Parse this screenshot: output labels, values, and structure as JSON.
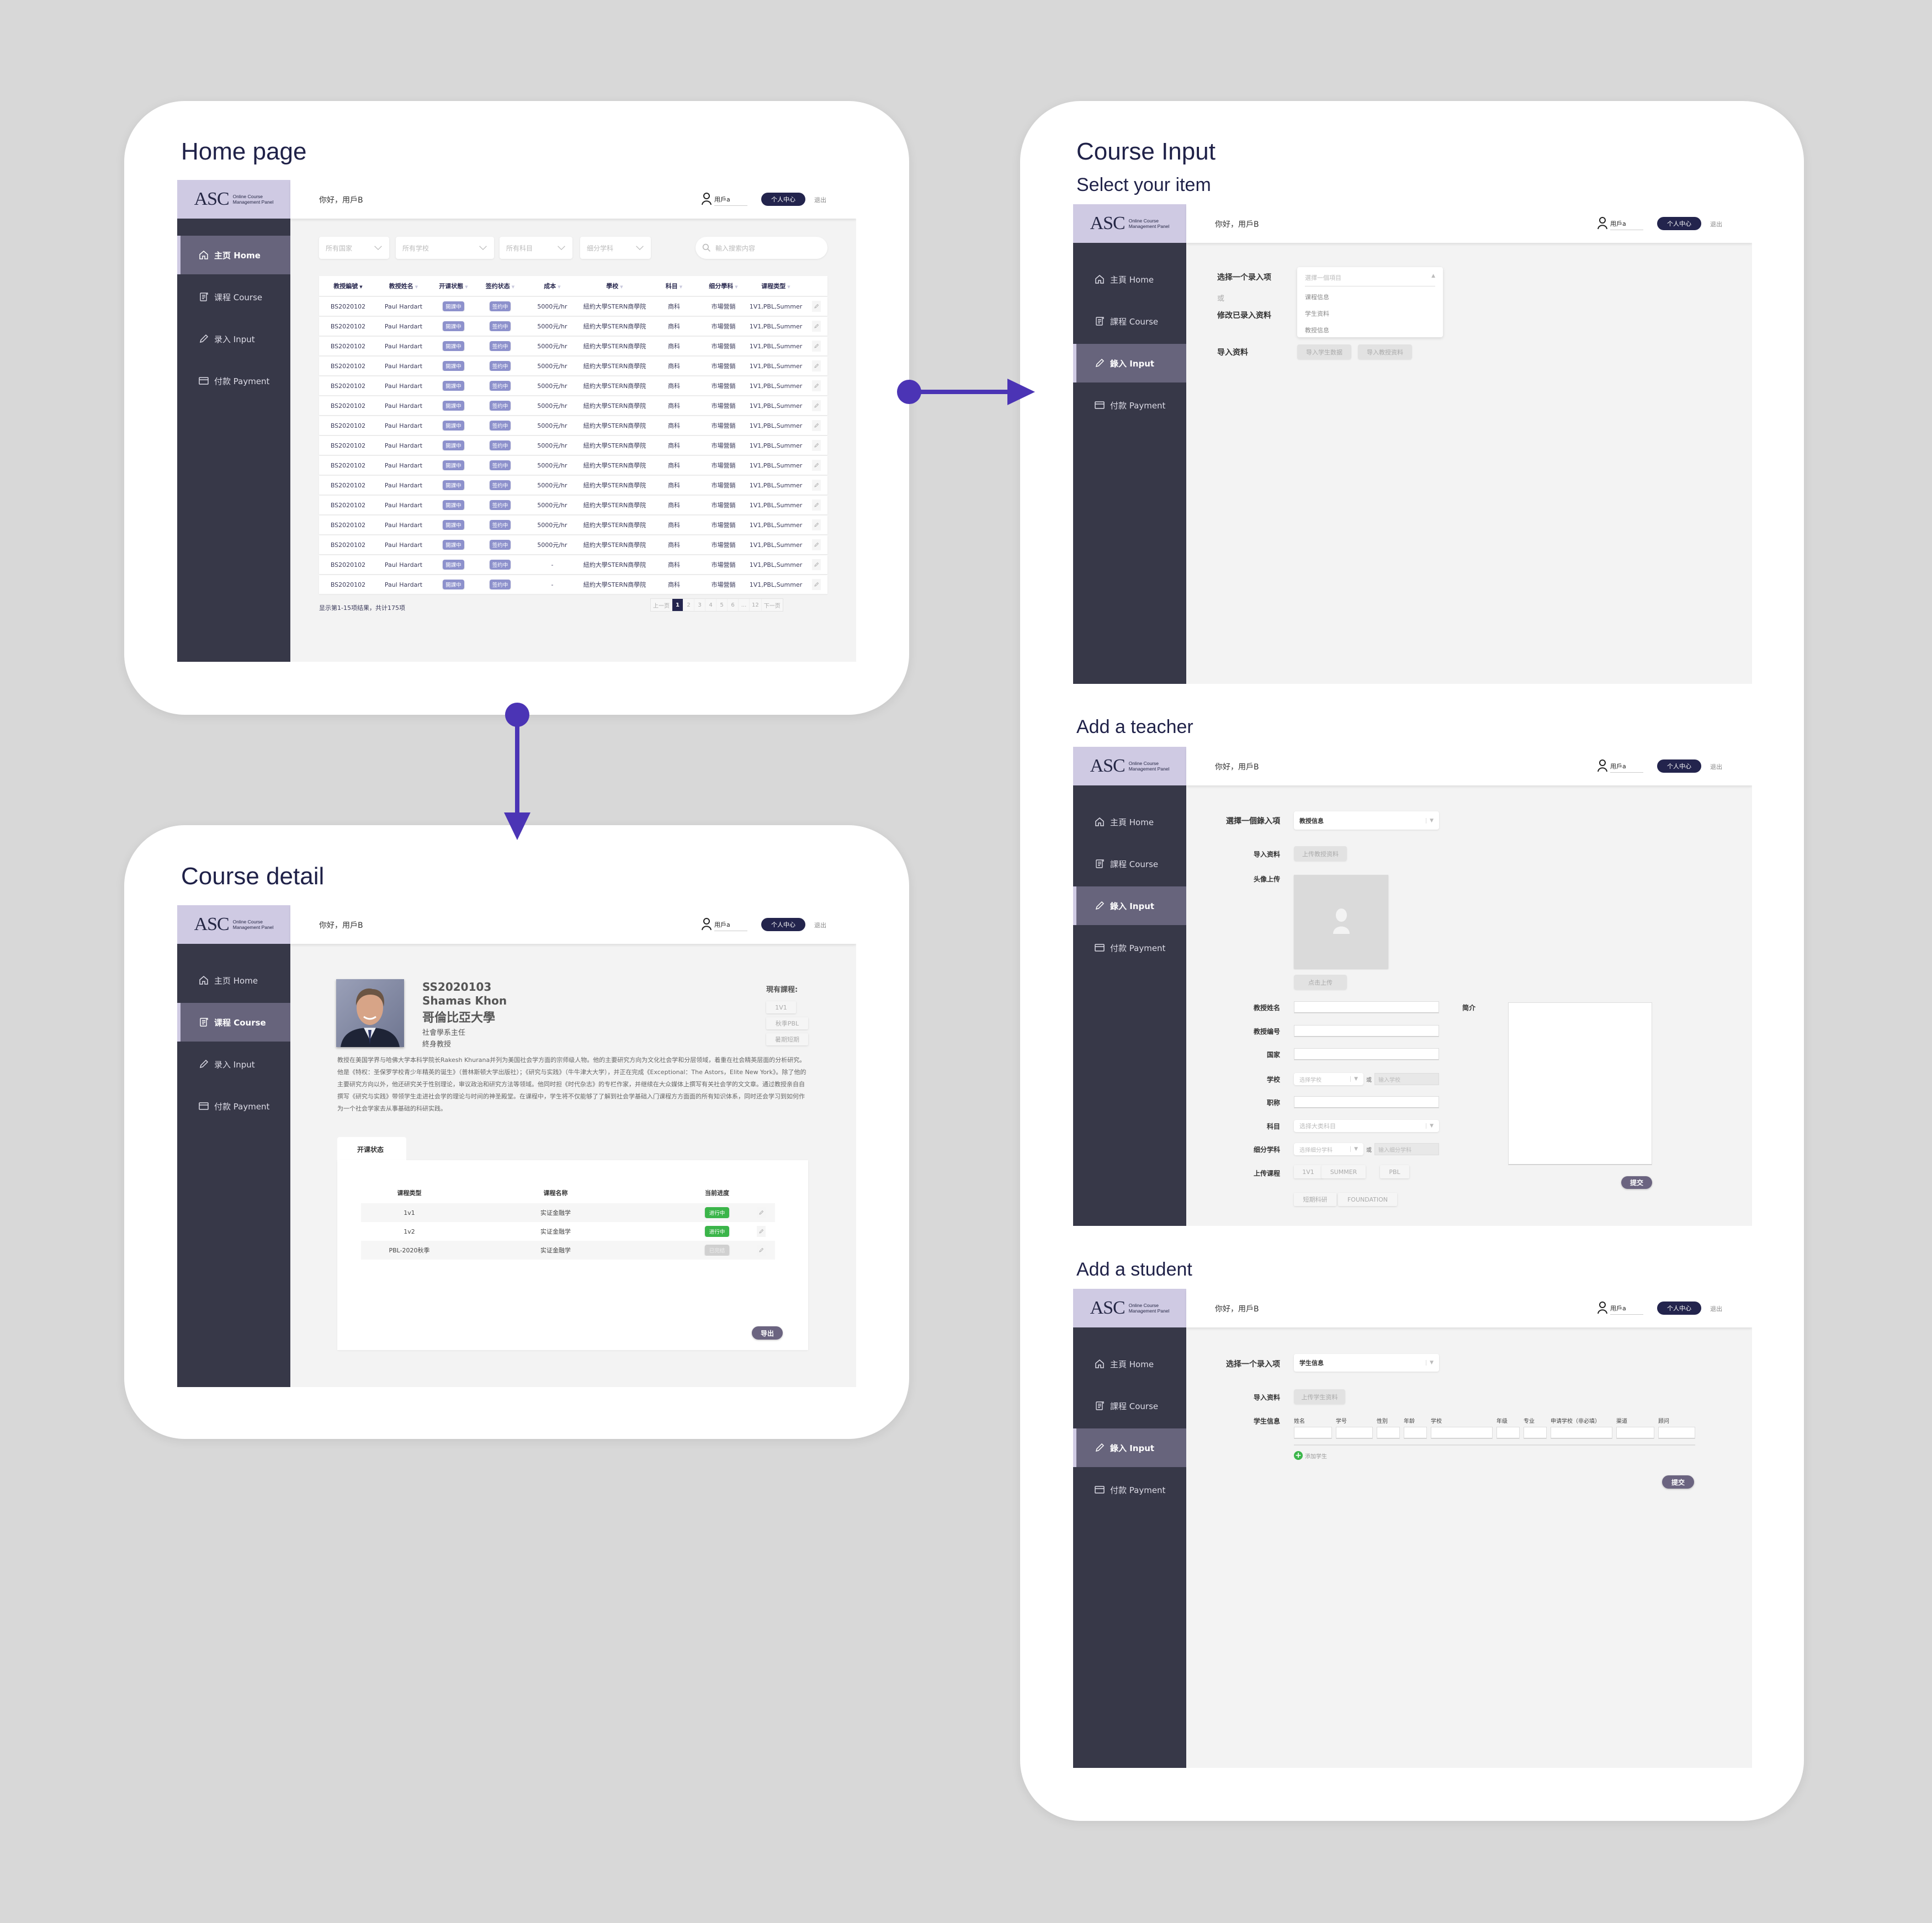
{
  "colors": {
    "background": "#d8d8d8",
    "title": "#1f2148",
    "sidebar": "#373848",
    "sidebar_active": "#67647c",
    "logo_bg": "#cfcae3",
    "accent_pill": "#23244d",
    "connector": "#4b34b5",
    "badge": "#8d91cc",
    "status_active": "#3bb54a",
    "status_done": "#d0d0d0",
    "primary_button": "#6b6480"
  },
  "app": {
    "logo_mark": "ASC",
    "logo_line1": "Online Course",
    "logo_line2": "Management Panel",
    "greeting": "你好，用戶B",
    "username": "用戶a",
    "profile_button": "个人中心",
    "logout": "退出"
  },
  "nav_simplified": [
    {
      "label": "主页 Home",
      "icon": "home-icon"
    },
    {
      "label": "课程 Course",
      "icon": "course-icon"
    },
    {
      "label": "录入 Input",
      "icon": "pencil-icon"
    },
    {
      "label": "付款 Payment",
      "icon": "card-icon"
    }
  ],
  "nav_traditional": [
    {
      "label": "主頁 Home",
      "icon": "home-icon"
    },
    {
      "label": "課程 Course",
      "icon": "course-icon"
    },
    {
      "label": "錄入 Input",
      "icon": "pencil-icon"
    },
    {
      "label": "付款 Payment",
      "icon": "card-icon"
    }
  ],
  "home": {
    "title": "Home page",
    "filters": [
      "所有国家",
      "所有学校",
      "所有科目",
      "细分学科"
    ],
    "search_placeholder": "輸入搜索内容",
    "columns": [
      "教授編號",
      "教授姓名",
      "开课状態",
      "签约状态",
      "成本",
      "學校",
      "科目",
      "细分學科",
      "课程类型"
    ],
    "rows": [
      [
        "BS2020102",
        "Paul Hardart",
        "開課中",
        "签约中",
        "5000元/hr",
        "紐約大學STERN商學院",
        "商科",
        "市場營銷",
        "1V1,PBL,Summer"
      ],
      [
        "BS2020102",
        "Paul Hardart",
        "開課中",
        "签约中",
        "5000元/hr",
        "紐約大學STERN商學院",
        "商科",
        "市場營銷",
        "1V1,PBL,Summer"
      ],
      [
        "BS2020102",
        "Paul Hardart",
        "開課中",
        "签约中",
        "5000元/hr",
        "紐約大學STERN商學院",
        "商科",
        "市場營銷",
        "1V1,PBL,Summer"
      ],
      [
        "BS2020102",
        "Paul Hardart",
        "開課中",
        "签约中",
        "5000元/hr",
        "紐約大學STERN商學院",
        "商科",
        "市場營銷",
        "1V1,PBL,Summer"
      ],
      [
        "BS2020102",
        "Paul Hardart",
        "開課中",
        "签约中",
        "5000元/hr",
        "紐約大學STERN商學院",
        "商科",
        "市場營銷",
        "1V1,PBL,Summer"
      ],
      [
        "BS2020102",
        "Paul Hardart",
        "開課中",
        "签约中",
        "5000元/hr",
        "紐約大學STERN商學院",
        "商科",
        "市場營銷",
        "1V1,PBL,Summer"
      ],
      [
        "BS2020102",
        "Paul Hardart",
        "開課中",
        "签约中",
        "5000元/hr",
        "紐約大學STERN商學院",
        "商科",
        "市場營銷",
        "1V1,PBL,Summer"
      ],
      [
        "BS2020102",
        "Paul Hardart",
        "開課中",
        "签约中",
        "5000元/hr",
        "紐約大學STERN商學院",
        "商科",
        "市場營銷",
        "1V1,PBL,Summer"
      ],
      [
        "BS2020102",
        "Paul Hardart",
        "開課中",
        "签约中",
        "5000元/hr",
        "紐約大學STERN商學院",
        "商科",
        "市場營銷",
        "1V1,PBL,Summer"
      ],
      [
        "BS2020102",
        "Paul Hardart",
        "開課中",
        "签约中",
        "5000元/hr",
        "紐約大學STERN商學院",
        "商科",
        "市場營銷",
        "1V1,PBL,Summer"
      ],
      [
        "BS2020102",
        "Paul Hardart",
        "開課中",
        "签约中",
        "5000元/hr",
        "紐約大學STERN商學院",
        "商科",
        "市場營銷",
        "1V1,PBL,Summer"
      ],
      [
        "BS2020102",
        "Paul Hardart",
        "開課中",
        "签约中",
        "5000元/hr",
        "紐約大學STERN商學院",
        "商科",
        "市場營銷",
        "1V1,PBL,Summer"
      ],
      [
        "BS2020102",
        "Paul Hardart",
        "開課中",
        "签约中",
        "5000元/hr",
        "紐約大學STERN商學院",
        "商科",
        "市場營銷",
        "1V1,PBL,Summer"
      ],
      [
        "BS2020102",
        "Paul Hardart",
        "開課中",
        "签约中",
        "-",
        "紐約大學STERN商學院",
        "商科",
        "市場營銷",
        "1V1,PBL,Summer"
      ],
      [
        "BS2020102",
        "Paul Hardart",
        "開課中",
        "签约中",
        "-",
        "紐約大學STERN商學院",
        "商科",
        "市場營銷",
        "1V1,PBL,Summer"
      ]
    ],
    "summary": "显示第1-15项结果，共计175项",
    "pagination": {
      "prev": "上一页",
      "pages": [
        "1",
        "2",
        "3",
        "4",
        "5",
        "6",
        "...",
        "12"
      ],
      "current": "1",
      "next": "下一页"
    }
  },
  "detail": {
    "title": "Course detail",
    "id": "SS2020103",
    "name": "Shamas Khon",
    "university": "哥倫比亞大學",
    "position": "社會學系主任",
    "rank": "終身教授",
    "current_courses_label": "現有課程:",
    "current_courses": [
      "1V1",
      "秋季PBL",
      "暑期短期"
    ],
    "bio": "教授在美国学界与哈佛大学本科学院长Rakesh Khurana并列为美国社会学方面的宗师级人物。他的主要研究方向为文化社会学和分层领域，着重在社会精英层面的分析研究。他是《特权：圣保罗学校青少年精英的诞生》（普林斯顿大学出版社）；《研究与实践》（牛牛津大大学），并正在完成《Exceptional：The Astors，Elite New York》。除了他的主要研究方向以外，他还研究关于性别理论，审议政治和研究方法等领域。他同时担《时代杂志》的专栏作家，并继续在大众媒体上撰写有关社会学的文文章。通过教授亲自自撰写《研究与实践》带领学生走进社会学的理论与时间的神圣殿堂。在课程中，学生将不仅能够了了解到社会学基础入门课程方方面面的所有知识体系，同时还会学习到如何作为一个社会学家去从事基础的科研实践。",
    "tab": "开课状态",
    "columns": [
      "课程类型",
      "课程名称",
      "当前进度"
    ],
    "rows": [
      {
        "type": "1v1",
        "name": "实证金融学",
        "status": "进行中",
        "state": "active"
      },
      {
        "type": "1v2",
        "name": "实证金融学",
        "status": "进行中",
        "state": "active"
      },
      {
        "type": "PBL-2020秋季",
        "name": "实证金融学",
        "status": "已完结",
        "state": "done"
      }
    ],
    "export_button": "导出"
  },
  "course_input": {
    "title": "Course Input",
    "subtitle": "Select your item",
    "select_label": "选择一个录入项",
    "or": "或",
    "modify_label": "修改已录入资料",
    "import_label": "导入资料",
    "dropdown_placeholder": "選擇一個項目",
    "options": [
      "课程信息",
      "学生资料",
      "教授信息"
    ],
    "import_buttons": [
      "导入学生数据",
      "导入教授资料"
    ]
  },
  "teacher": {
    "title": "Add a teacher",
    "select_label": "選擇一個錄入項",
    "selected": "教授信息",
    "import_label": "导入资料",
    "import_button": "上传教授资料",
    "avatar_label": "头像上传",
    "avatar_button": "点击上传",
    "fields": {
      "name": "教授姓名",
      "id": "教授编号",
      "country": "国家",
      "school": "学校",
      "title": "职称",
      "subject": "科目",
      "subfield": "细分学科",
      "courses": "上传课程"
    },
    "or": "或",
    "school_select_placeholder": "选择学校",
    "school_input_placeholder": "输入学校",
    "subject_placeholder": "选择大类科目",
    "subfield_select_placeholder": "选择细分学科",
    "subfield_input_placeholder": "输入细分学科",
    "course_chips": [
      "1V1",
      "SUMMER",
      "PBL",
      "短期科研",
      "FOUNDATION"
    ],
    "intro_label": "简介",
    "submit": "提交"
  },
  "student": {
    "title": "Add a student",
    "select_label": "选择一个录入项",
    "selected": "学生信息",
    "import_label": "导入资料",
    "import_button": "上传学生资料",
    "info_label": "学生信息",
    "columns": [
      "姓名",
      "学号",
      "性别",
      "年龄",
      "学校",
      "年级",
      "专业",
      "申请学校（非必填）",
      "渠道",
      "顾问"
    ],
    "add_student": "添加学生",
    "submit": "提交"
  }
}
